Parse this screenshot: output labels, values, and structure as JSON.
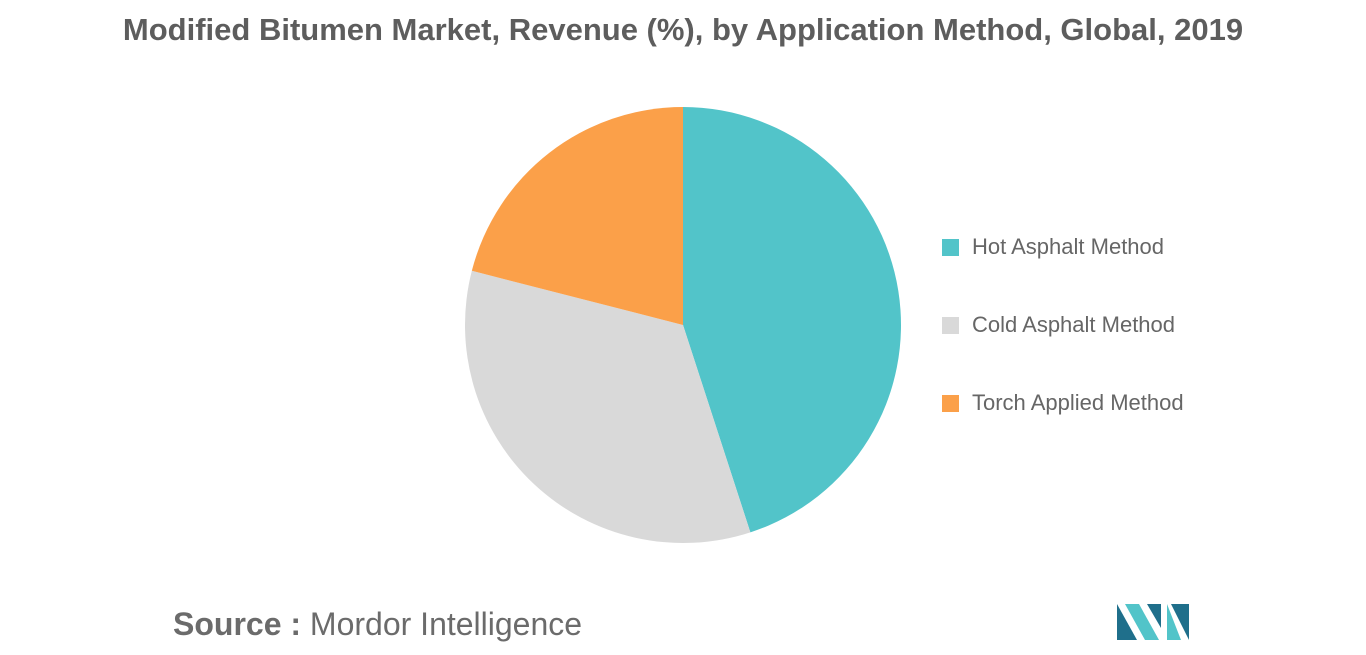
{
  "chart_data": {
    "type": "pie",
    "title": "Modified Bitumen Market, Revenue (%), by Application Method, Global, 2019",
    "categories": [
      "Hot Asphalt Method",
      "Cold Asphalt Method",
      "Torch Applied Method"
    ],
    "values": [
      45,
      34,
      21
    ],
    "colors": [
      "#52c4c9",
      "#d9d9d9",
      "#fba049"
    ],
    "legend_position": "right"
  },
  "source": {
    "label": "Source :",
    "text": "Mordor Intelligence"
  },
  "logo": {
    "icon": "mordor-intelligence-logo-icon",
    "colors": [
      "#1f6f8b",
      "#52c4c9"
    ]
  }
}
